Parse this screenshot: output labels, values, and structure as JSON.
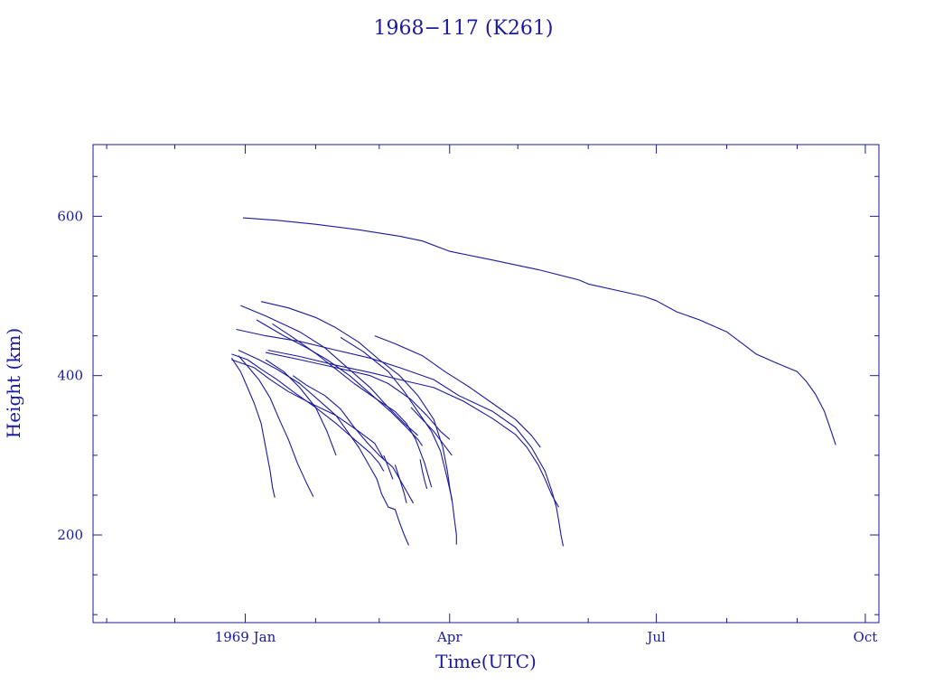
{
  "colors": {
    "ink": "#1a1a9c",
    "background": "#ffffff"
  },
  "chart_data": {
    "type": "line",
    "title": "1968−117 (K261)",
    "xlabel": "Time(UTC)",
    "ylabel": "Height (km)",
    "xlim": [
      "1968-10-26",
      "1969-10-07"
    ],
    "ylim": [
      90,
      690
    ],
    "x_ticks": [
      {
        "date": "1969-01-01",
        "label": "1969 Jan"
      },
      {
        "date": "1969-04-01",
        "label": "Apr"
      },
      {
        "date": "1969-07-01",
        "label": "Jul"
      },
      {
        "date": "1969-10-01",
        "label": "Oct"
      }
    ],
    "x_minor_ticks": [
      "1968-11-01",
      "1968-12-01",
      "1969-02-01",
      "1969-03-01",
      "1969-05-01",
      "1969-06-01",
      "1969-08-01",
      "1969-09-01"
    ],
    "y_ticks": [
      200,
      400,
      600
    ],
    "y_minor_ticks": [
      100,
      150,
      250,
      300,
      350,
      450,
      500,
      550,
      650
    ],
    "grid": false,
    "legend": "none",
    "series": [
      {
        "points": [
          [
            "1968-12-31",
            598
          ],
          [
            "1969-01-15",
            595
          ],
          [
            "1969-02-01",
            590
          ],
          [
            "1969-02-20",
            583
          ],
          [
            "1969-03-10",
            575
          ],
          [
            "1969-03-20",
            569
          ],
          [
            "1969-04-01",
            556
          ],
          [
            "1969-04-20",
            545
          ],
          [
            "1969-05-10",
            533
          ],
          [
            "1969-05-28",
            520
          ],
          [
            "1969-06-01",
            515
          ],
          [
            "1969-06-20",
            503
          ],
          [
            "1969-06-26",
            499
          ],
          [
            "1969-07-01",
            494
          ],
          [
            "1969-07-10",
            480
          ],
          [
            "1969-07-20",
            470
          ],
          [
            "1969-08-01",
            455
          ],
          [
            "1969-08-08",
            440
          ],
          [
            "1969-08-14",
            427
          ],
          [
            "1969-08-22",
            417
          ],
          [
            "1969-09-01",
            405
          ],
          [
            "1969-09-05",
            393
          ],
          [
            "1969-09-09",
            377
          ],
          [
            "1969-09-13",
            355
          ],
          [
            "1969-09-16",
            330
          ],
          [
            "1969-09-18",
            313
          ]
        ]
      },
      {
        "points": [
          [
            "1969-01-11",
            432
          ],
          [
            "1969-01-25",
            424
          ],
          [
            "1969-02-10",
            413
          ],
          [
            "1969-02-25",
            404
          ],
          [
            "1969-03-10",
            395
          ],
          [
            "1969-03-25",
            385
          ],
          [
            "1969-04-07",
            368
          ],
          [
            "1969-04-20",
            346
          ],
          [
            "1969-04-30",
            326
          ],
          [
            "1969-05-05",
            310
          ],
          [
            "1969-05-10",
            288
          ],
          [
            "1969-05-13",
            270
          ],
          [
            "1969-05-16",
            250
          ],
          [
            "1969-05-19",
            235
          ]
        ]
      },
      {
        "points": [
          [
            "1968-12-28",
            458
          ],
          [
            "1969-01-10",
            450
          ],
          [
            "1969-01-25",
            443
          ],
          [
            "1969-02-10",
            432
          ],
          [
            "1969-02-25",
            422
          ],
          [
            "1969-03-10",
            410
          ],
          [
            "1969-03-25",
            395
          ],
          [
            "1969-04-05",
            375
          ],
          [
            "1969-04-20",
            355
          ],
          [
            "1969-04-30",
            335
          ],
          [
            "1969-05-07",
            310
          ],
          [
            "1969-05-13",
            280
          ],
          [
            "1969-05-16",
            255
          ],
          [
            "1969-05-18",
            235
          ],
          [
            "1969-05-19",
            218
          ],
          [
            "1969-05-20",
            200
          ],
          [
            "1969-05-21",
            186
          ]
        ]
      },
      {
        "points": [
          [
            "1968-12-30",
            488
          ],
          [
            "1969-01-10",
            475
          ],
          [
            "1969-01-25",
            455
          ],
          [
            "1969-02-05",
            435
          ],
          [
            "1969-02-15",
            410
          ],
          [
            "1969-02-25",
            385
          ],
          [
            "1969-03-05",
            360
          ],
          [
            "1969-03-12",
            340
          ],
          [
            "1969-03-18",
            325
          ]
        ]
      },
      {
        "points": [
          [
            "1969-01-08",
            493
          ],
          [
            "1969-01-20",
            485
          ],
          [
            "1969-02-01",
            473
          ],
          [
            "1969-02-10",
            460
          ],
          [
            "1969-02-20",
            442
          ],
          [
            "1969-03-01",
            420
          ],
          [
            "1969-03-10",
            400
          ],
          [
            "1969-03-18",
            375
          ],
          [
            "1969-03-25",
            345
          ],
          [
            "1969-03-29",
            310
          ],
          [
            "1969-03-31",
            280
          ],
          [
            "1969-04-01",
            260
          ],
          [
            "1969-04-02",
            243
          ]
        ]
      },
      {
        "points": [
          [
            "1969-01-06",
            470
          ],
          [
            "1969-01-18",
            450
          ],
          [
            "1969-01-28",
            435
          ],
          [
            "1969-02-06",
            420
          ],
          [
            "1969-02-16",
            400
          ],
          [
            "1969-02-26",
            375
          ],
          [
            "1969-03-06",
            355
          ],
          [
            "1969-03-13",
            335
          ],
          [
            "1969-03-18",
            320
          ],
          [
            "1969-03-20",
            312
          ]
        ]
      },
      {
        "points": [
          [
            "1969-01-13",
            465
          ],
          [
            "1969-01-22",
            448
          ],
          [
            "1969-02-01",
            428
          ],
          [
            "1969-02-10",
            408
          ],
          [
            "1969-02-18",
            390
          ],
          [
            "1969-02-28",
            370
          ],
          [
            "1969-03-08",
            355
          ],
          [
            "1969-03-13",
            340
          ],
          [
            "1969-03-17",
            320
          ],
          [
            "1969-03-21",
            290
          ],
          [
            "1969-03-24",
            260
          ]
        ]
      },
      {
        "points": [
          [
            "1969-02-12",
            448
          ],
          [
            "1969-02-22",
            430
          ],
          [
            "1969-03-05",
            405
          ],
          [
            "1969-03-12",
            380
          ],
          [
            "1969-03-18",
            355
          ],
          [
            "1969-03-24",
            330
          ],
          [
            "1969-03-28",
            305
          ],
          [
            "1969-03-31",
            270
          ],
          [
            "1969-04-02",
            245
          ],
          [
            "1969-04-03",
            222
          ],
          [
            "1969-04-04",
            200
          ],
          [
            "1969-04-04",
            188
          ]
        ]
      },
      {
        "points": [
          [
            "1969-02-27",
            450
          ],
          [
            "1969-03-08",
            440
          ],
          [
            "1969-03-20",
            425
          ],
          [
            "1969-03-30",
            405
          ],
          [
            "1969-04-10",
            385
          ],
          [
            "1969-04-20",
            365
          ],
          [
            "1969-04-30",
            345
          ],
          [
            "1969-05-07",
            325
          ],
          [
            "1969-05-11",
            310
          ]
        ]
      },
      {
        "points": [
          [
            "1969-01-10",
            429
          ],
          [
            "1969-01-25",
            420
          ],
          [
            "1969-02-10",
            410
          ],
          [
            "1969-02-25",
            400
          ],
          [
            "1969-03-05",
            390
          ],
          [
            "1969-03-15",
            370
          ],
          [
            "1969-03-22",
            350
          ],
          [
            "1969-03-28",
            330
          ],
          [
            "1969-04-01",
            320
          ]
        ]
      },
      {
        "points": [
          [
            "1968-12-26",
            420
          ],
          [
            "1969-01-05",
            410
          ],
          [
            "1969-01-12",
            395
          ],
          [
            "1969-01-20",
            380
          ],
          [
            "1969-01-30",
            365
          ],
          [
            "1969-02-10",
            350
          ],
          [
            "1969-02-20",
            330
          ],
          [
            "1969-02-27",
            315
          ],
          [
            "1969-03-01",
            305
          ],
          [
            "1969-03-03",
            295
          ],
          [
            "1969-03-07",
            285
          ],
          [
            "1969-03-10",
            270
          ],
          [
            "1969-03-12",
            260
          ],
          [
            "1969-03-14",
            250
          ],
          [
            "1969-03-16",
            240
          ]
        ]
      },
      {
        "points": [
          [
            "1968-12-29",
            432
          ],
          [
            "1969-01-07",
            420
          ],
          [
            "1969-01-15",
            408
          ],
          [
            "1969-01-25",
            390
          ],
          [
            "1969-02-02",
            370
          ],
          [
            "1969-02-10",
            350
          ],
          [
            "1969-02-15",
            330
          ],
          [
            "1969-02-20",
            310
          ],
          [
            "1969-02-25",
            285
          ],
          [
            "1969-02-28",
            270
          ],
          [
            "1969-03-02",
            252
          ],
          [
            "1969-03-05",
            235
          ],
          [
            "1969-03-08",
            232
          ],
          [
            "1969-03-10",
            215
          ],
          [
            "1969-03-12",
            200
          ],
          [
            "1969-03-14",
            187
          ]
        ]
      },
      {
        "points": [
          [
            "1968-12-26",
            427
          ],
          [
            "1969-01-02",
            420
          ],
          [
            "1969-01-08",
            408
          ],
          [
            "1969-01-15",
            395
          ],
          [
            "1969-01-22",
            380
          ],
          [
            "1969-02-01",
            360
          ],
          [
            "1969-02-10",
            340
          ],
          [
            "1969-02-18",
            320
          ],
          [
            "1969-02-25",
            303
          ],
          [
            "1969-03-01",
            290
          ],
          [
            "1969-03-03",
            280
          ]
        ]
      },
      {
        "points": [
          [
            "1968-12-26",
            422
          ],
          [
            "1968-12-30",
            405
          ],
          [
            "1969-01-02",
            385
          ],
          [
            "1969-01-05",
            365
          ],
          [
            "1969-01-08",
            340
          ],
          [
            "1969-01-10",
            310
          ],
          [
            "1969-01-12",
            280
          ],
          [
            "1969-01-13",
            260
          ],
          [
            "1969-01-14",
            247
          ]
        ]
      },
      {
        "points": [
          [
            "1968-12-29",
            425
          ],
          [
            "1969-01-02",
            412
          ],
          [
            "1969-01-07",
            395
          ],
          [
            "1969-01-12",
            372
          ],
          [
            "1969-01-16",
            345
          ],
          [
            "1969-01-20",
            320
          ],
          [
            "1969-01-24",
            290
          ],
          [
            "1969-01-28",
            265
          ],
          [
            "1969-01-31",
            248
          ]
        ]
      },
      {
        "points": [
          [
            "1969-01-10",
            420
          ],
          [
            "1969-01-18",
            405
          ],
          [
            "1969-01-25",
            385
          ],
          [
            "1969-02-01",
            360
          ],
          [
            "1969-02-06",
            330
          ],
          [
            "1969-02-10",
            300
          ]
        ]
      },
      {
        "points": [
          [
            "1969-01-22",
            400
          ],
          [
            "1969-01-28",
            388
          ],
          [
            "1969-02-05",
            375
          ],
          [
            "1969-02-12",
            358
          ],
          [
            "1969-02-18",
            335
          ],
          [
            "1969-02-24",
            315
          ],
          [
            "1969-03-01",
            300
          ],
          [
            "1969-03-03",
            295
          ]
        ]
      },
      {
        "points": [
          [
            "1969-03-19",
            295
          ],
          [
            "1969-03-20",
            280
          ],
          [
            "1969-03-21",
            268
          ],
          [
            "1969-03-22",
            258
          ]
        ]
      },
      {
        "points": [
          [
            "1969-03-03",
            300
          ],
          [
            "1969-03-05",
            285
          ],
          [
            "1969-03-07",
            270
          ]
        ]
      },
      {
        "points": [
          [
            "1969-03-08",
            288
          ],
          [
            "1969-03-10",
            270
          ],
          [
            "1969-03-12",
            252
          ],
          [
            "1969-03-13",
            240
          ]
        ]
      },
      {
        "points": [
          [
            "1969-03-15",
            360
          ],
          [
            "1969-03-20",
            345
          ],
          [
            "1969-03-25",
            330
          ],
          [
            "1969-03-29",
            315
          ],
          [
            "1969-04-02",
            300
          ]
        ]
      }
    ]
  }
}
